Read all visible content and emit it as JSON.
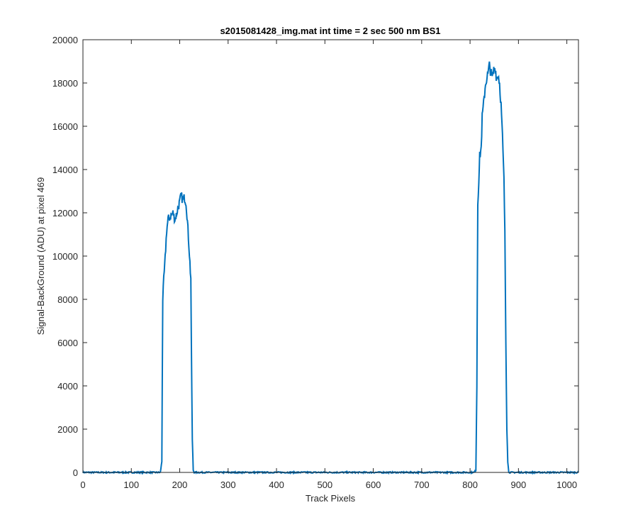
{
  "chart_data": {
    "type": "line",
    "title": "s2015081428_img.mat int time = 2 sec  500 nm BS1",
    "xlabel": "Track Pixels",
    "ylabel": "Signal-BackGround (ADU) at pixel 469",
    "xlim": [
      0,
      1024
    ],
    "ylim": [
      0,
      20000
    ],
    "xticks": [
      0,
      100,
      200,
      300,
      400,
      500,
      600,
      700,
      800,
      900,
      1000
    ],
    "yticks": [
      0,
      2000,
      4000,
      6000,
      8000,
      10000,
      12000,
      14000,
      16000,
      18000,
      20000
    ],
    "grid": false,
    "line_color": "#0072BD",
    "series": [
      {
        "x": [
          0,
          50,
          100,
          150,
          160,
          163,
          165,
          167,
          170,
          173,
          176,
          180,
          183,
          186,
          190,
          193,
          196,
          200,
          203,
          206,
          210,
          213,
          216,
          219,
          222,
          223,
          224,
          226,
          228,
          230,
          235,
          300,
          400,
          500,
          600,
          700,
          800,
          808,
          812,
          814,
          816,
          818,
          820,
          823,
          825,
          828,
          831,
          834,
          837,
          840,
          843,
          846,
          849,
          852,
          855,
          858,
          861,
          864,
          867,
          870,
          872,
          874,
          876,
          878,
          880,
          890,
          950,
          1024
        ],
        "y": [
          0,
          0,
          0,
          0,
          0,
          500,
          8000,
          8900,
          9900,
          11200,
          11700,
          11800,
          11900,
          12000,
          11700,
          11900,
          12200,
          12500,
          12800,
          12600,
          12700,
          12500,
          11600,
          10500,
          9300,
          9000,
          6000,
          1500,
          100,
          0,
          0,
          0,
          0,
          0,
          0,
          0,
          0,
          0,
          100,
          4000,
          12500,
          13500,
          14600,
          15000,
          16400,
          17000,
          17800,
          18200,
          18400,
          18800,
          18500,
          18200,
          18600,
          18700,
          18200,
          18400,
          18000,
          17000,
          15500,
          13500,
          11000,
          6000,
          2000,
          500,
          0,
          0,
          0,
          0
        ]
      }
    ]
  }
}
